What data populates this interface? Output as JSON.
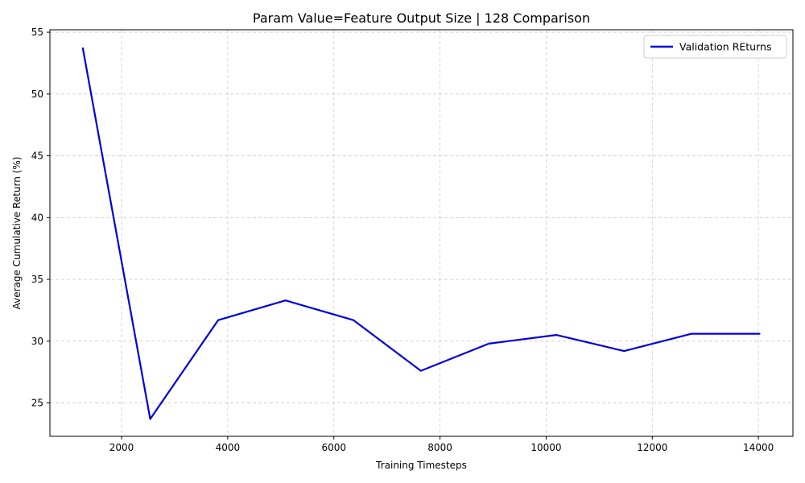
{
  "chart_data": {
    "type": "line",
    "title": "Param Value=Feature Output Size | 128 Comparison",
    "xlabel": "Training Timesteps",
    "ylabel": "Average Cumulative Return (%)",
    "xlim": [
      650,
      14650
    ],
    "ylim": [
      22.3,
      55.2
    ],
    "xticks": [
      2000,
      4000,
      6000,
      8000,
      10000,
      12000,
      14000
    ],
    "yticks": [
      25,
      30,
      35,
      40,
      45,
      50,
      55
    ],
    "grid": true,
    "legend_position": "top-right",
    "series": [
      {
        "name": "Validation REturns",
        "color": "#0000dd",
        "x": [
          1270,
          2540,
          3820,
          5090,
          6370,
          7640,
          8920,
          10190,
          11470,
          12740,
          14020
        ],
        "y": [
          53.7,
          23.7,
          31.7,
          33.3,
          31.7,
          27.6,
          29.8,
          30.5,
          29.2,
          30.6,
          30.6
        ]
      }
    ]
  }
}
